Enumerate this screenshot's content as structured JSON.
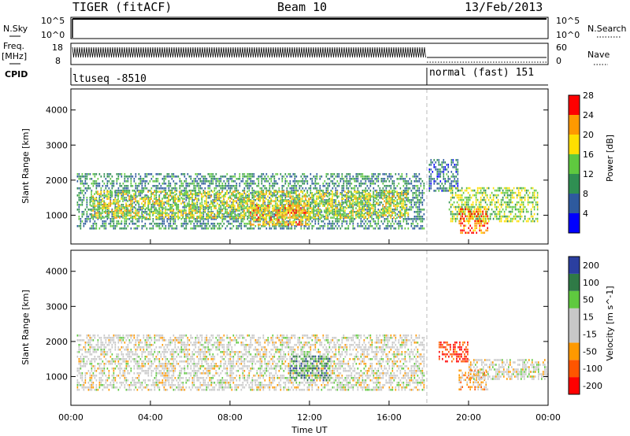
{
  "header": {
    "title": "TIGER (fitACF)",
    "beam": "Beam 10",
    "date": "13/Feb/2013"
  },
  "status_panels": {
    "nsky_label": "N.Sky",
    "nsearch_label": "N.Search",
    "freq_label_line1": "Freq.",
    "freq_label_line2": "[MHz]",
    "nave_label": "Nave",
    "cpid_label": "CPID",
    "nsky_ticks": [
      "10^5",
      "10^0"
    ],
    "freq_ticks": [
      "18",
      "8"
    ],
    "nave_ticks": [
      "60",
      "0"
    ],
    "cpid_segments": [
      {
        "name": "ltuseq -8510",
        "start_hour": 0,
        "end_hour": 18
      },
      {
        "name": "normal (fast) 151",
        "start_hour": 18,
        "end_hour": 24
      }
    ]
  },
  "chart_data": [
    {
      "type": "heatmap",
      "title": "",
      "xlabel": "",
      "ylabel": "Slant Range [km]",
      "x_unit": "hour UT",
      "xlim": [
        0,
        24
      ],
      "ylim": [
        180,
        4600
      ],
      "yticks": [
        "1000",
        "2000",
        "3000",
        "4000"
      ],
      "colorbar": {
        "label": "Power [dB]",
        "ticks": [
          "4",
          "8",
          "12",
          "16",
          "20",
          "24",
          "28"
        ],
        "range": [
          0,
          30
        ],
        "colors": [
          "#0000ff",
          "#2e5a9e",
          "#2f8f52",
          "#5fc93f",
          "#ffdf00",
          "#ff9900",
          "#ff0000"
        ]
      },
      "regions": [
        {
          "x0": 0.3,
          "x1": 17.8,
          "y0": 600,
          "y1": 2200,
          "value": 10
        },
        {
          "x0": 1,
          "x1": 17,
          "y0": 900,
          "y1": 1700,
          "value": 18
        },
        {
          "x0": 9,
          "x1": 12,
          "y0": 700,
          "y1": 1300,
          "value": 22
        },
        {
          "x0": 18,
          "x1": 19.5,
          "y0": 1700,
          "y1": 2600,
          "value": 8
        },
        {
          "x0": 19,
          "x1": 23.5,
          "y0": 800,
          "y1": 1800,
          "value": 16
        },
        {
          "x0": 19.5,
          "x1": 21,
          "y0": 500,
          "y1": 1200,
          "value": 25
        }
      ]
    },
    {
      "type": "heatmap",
      "title": "",
      "xlabel": "Time UT",
      "ylabel": "Slant Range [km]",
      "x_unit": "hour UT",
      "xlim": [
        0,
        24
      ],
      "ylim": [
        180,
        4600
      ],
      "xticks": [
        "00:00",
        "04:00",
        "08:00",
        "12:00",
        "16:00",
        "20:00",
        "00:00"
      ],
      "yticks": [
        "1000",
        "2000",
        "3000",
        "4000"
      ],
      "colorbar": {
        "label": "Velocity [m s^-1]",
        "ticks": [
          "200",
          "100",
          "50",
          "15",
          "-15",
          "-50",
          "-100",
          "-200"
        ],
        "range": [
          -250,
          250
        ],
        "colors": [
          "#2b3fa0",
          "#2f7a46",
          "#5fc93f",
          "#c8c8c8",
          "#c8c8c8",
          "#ff9900",
          "#ff5500",
          "#ff0000"
        ]
      },
      "regions": [
        {
          "x0": 0.3,
          "x1": 17.8,
          "y0": 600,
          "y1": 2200,
          "value": 0
        },
        {
          "x0": 11,
          "x1": 13,
          "y0": 900,
          "y1": 1600,
          "value": 150
        },
        {
          "x0": 18.5,
          "x1": 20,
          "y0": 1400,
          "y1": 2000,
          "value": -200
        },
        {
          "x0": 19.5,
          "x1": 21,
          "y0": 600,
          "y1": 1200,
          "value": -80
        },
        {
          "x0": 20,
          "x1": 24,
          "y0": 900,
          "y1": 1500,
          "value": 0
        }
      ]
    }
  ]
}
